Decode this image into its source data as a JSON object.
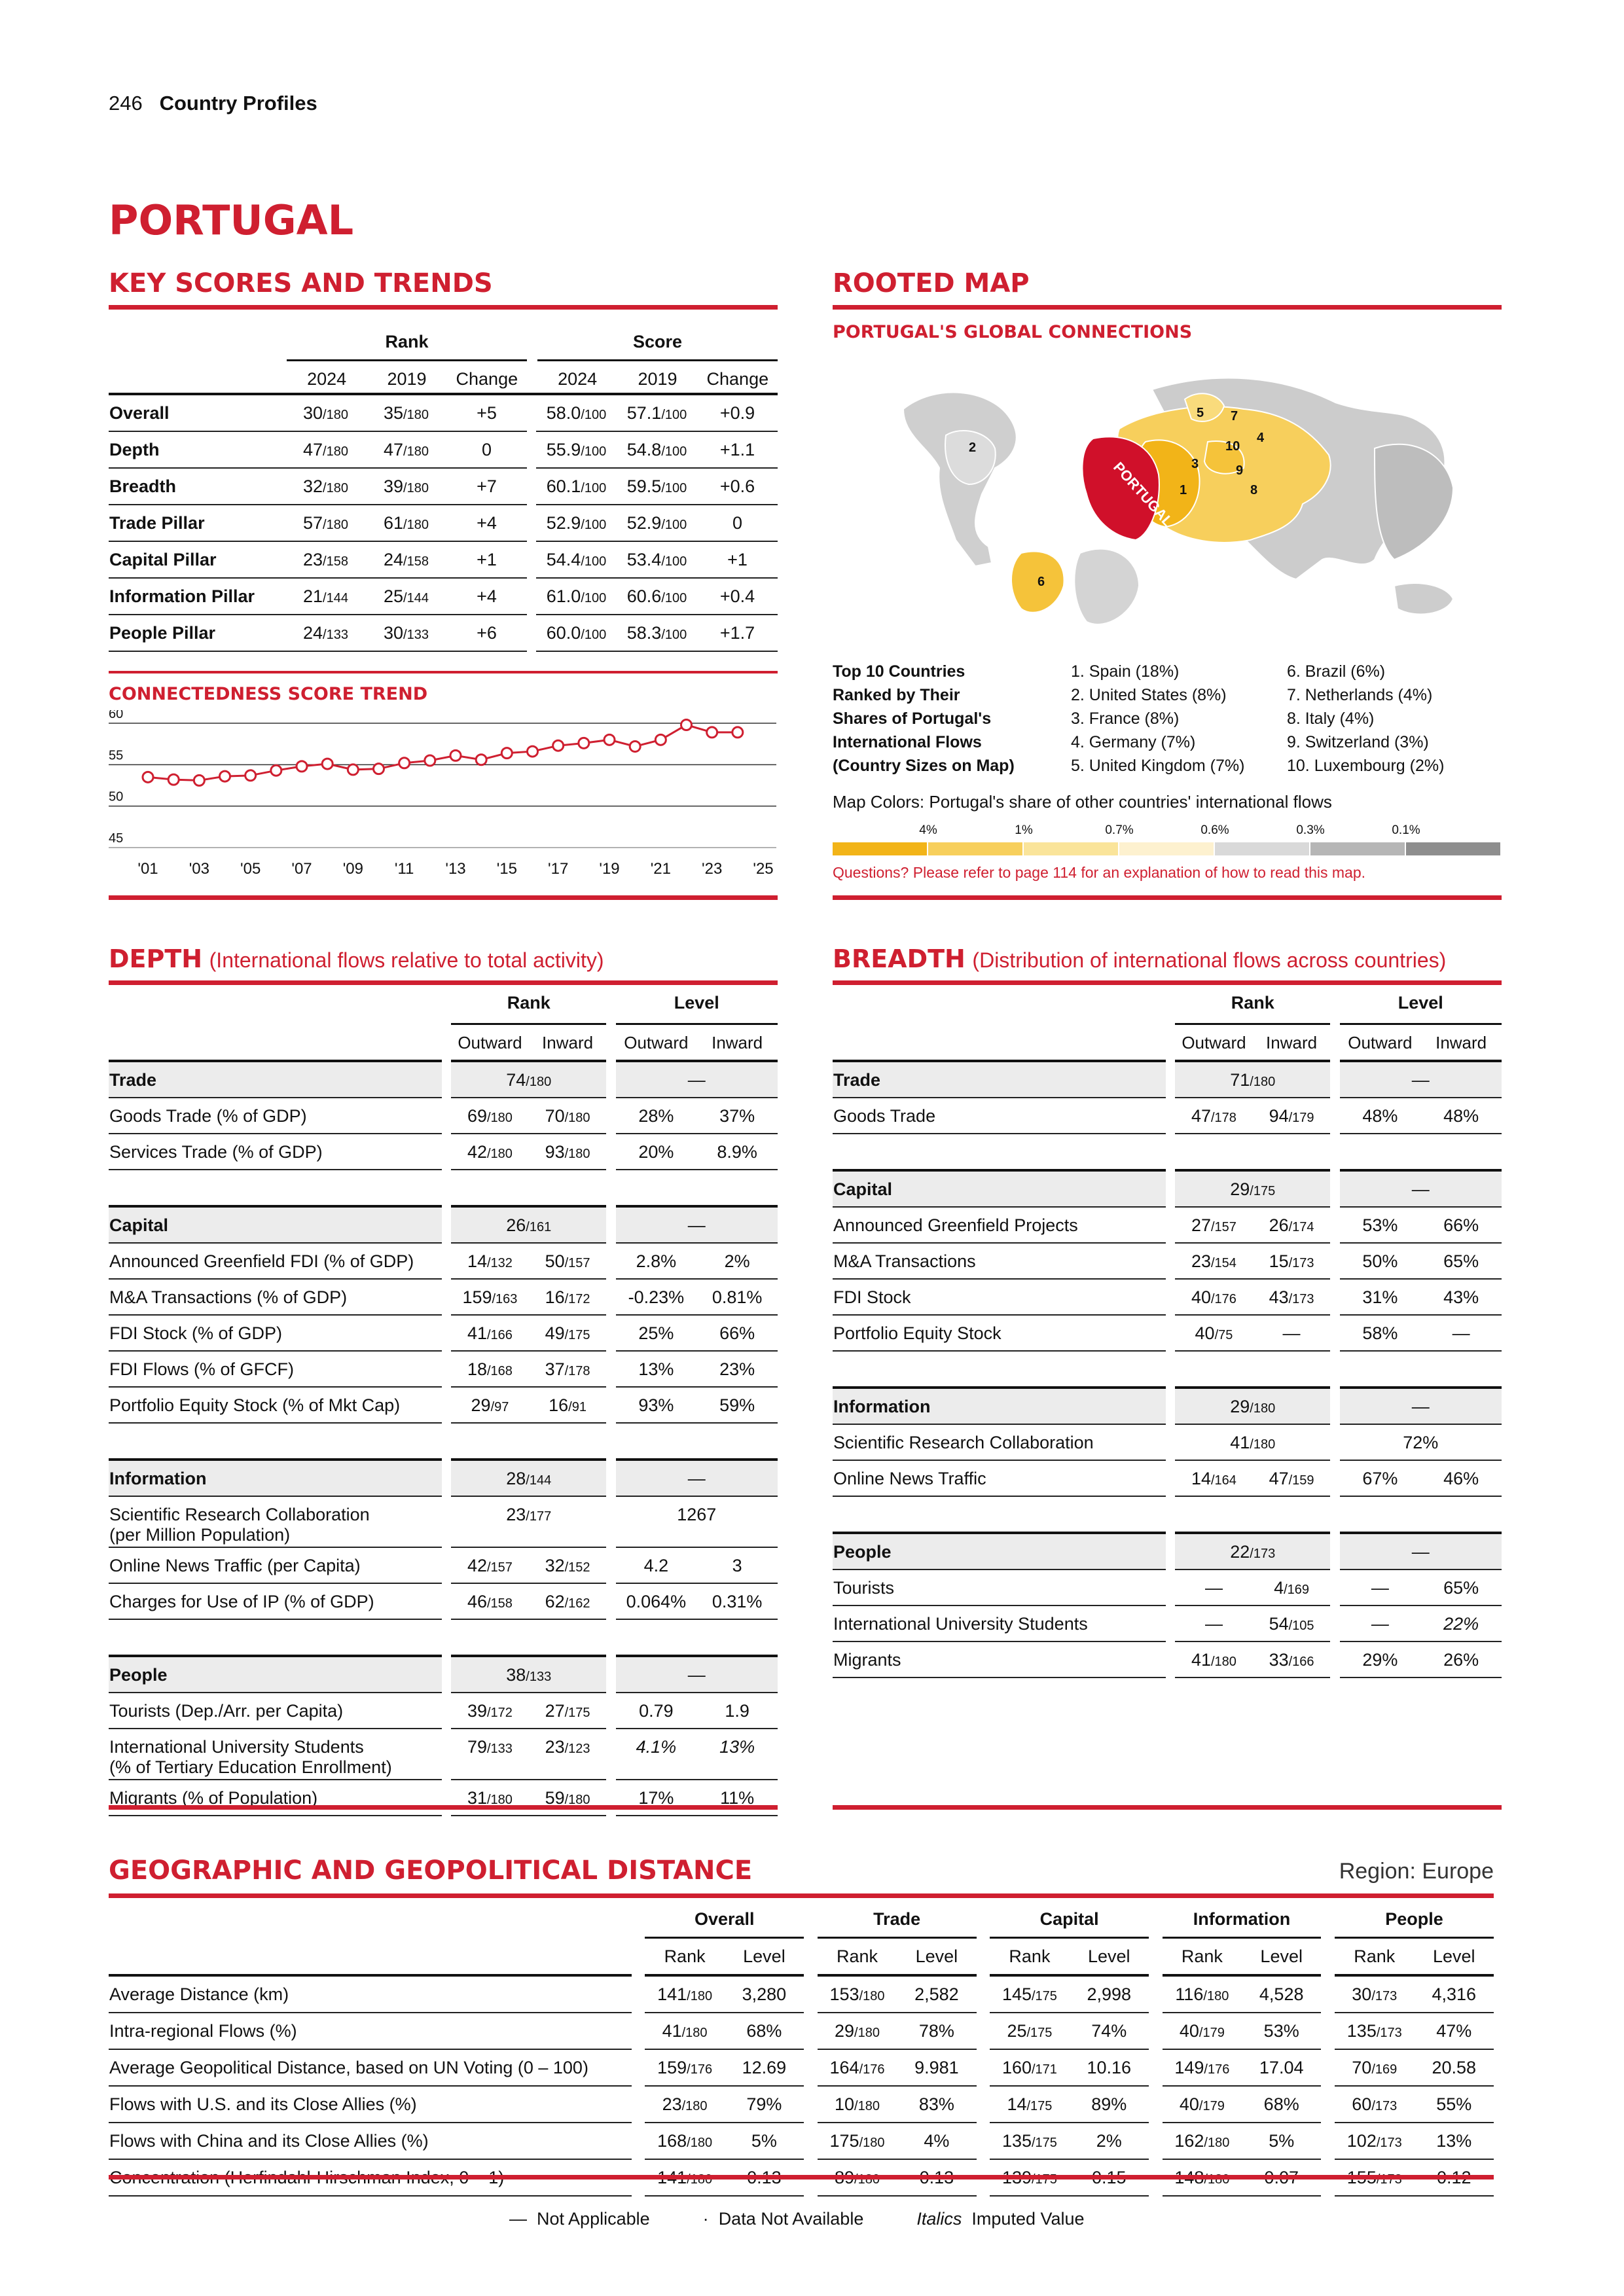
{
  "header": {
    "page_number": "246",
    "section": "Country Profiles"
  },
  "country": "PORTUGAL",
  "key_scores": {
    "title": "KEY SCORES AND TRENDS",
    "rank_label": "Rank",
    "score_label": "Score",
    "cols": [
      "2024",
      "2019",
      "Change",
      "2024",
      "2019",
      "Change"
    ],
    "rows": [
      {
        "label": "Overall",
        "r24": "30",
        "r24d": "/180",
        "r19": "35",
        "r19d": "/180",
        "rc": "+5",
        "s24": "58.0",
        "s24d": "/100",
        "s19": "57.1",
        "s19d": "/100",
        "sc": "+0.9"
      },
      {
        "label": "Depth",
        "r24": "47",
        "r24d": "/180",
        "r19": "47",
        "r19d": "/180",
        "rc": "0",
        "s24": "55.9",
        "s24d": "/100",
        "s19": "54.8",
        "s19d": "/100",
        "sc": "+1.1"
      },
      {
        "label": "Breadth",
        "r24": "32",
        "r24d": "/180",
        "r19": "39",
        "r19d": "/180",
        "rc": "+7",
        "s24": "60.1",
        "s24d": "/100",
        "s19": "59.5",
        "s19d": "/100",
        "sc": "+0.6"
      },
      {
        "label": "Trade Pillar",
        "r24": "57",
        "r24d": "/180",
        "r19": "61",
        "r19d": "/180",
        "rc": "+4",
        "s24": "52.9",
        "s24d": "/100",
        "s19": "52.9",
        "s19d": "/100",
        "sc": "0"
      },
      {
        "label": "Capital Pillar",
        "r24": "23",
        "r24d": "/158",
        "r19": "24",
        "r19d": "/158",
        "rc": "+1",
        "s24": "54.4",
        "s24d": "/100",
        "s19": "53.4",
        "s19d": "/100",
        "sc": "+1"
      },
      {
        "label": "Information Pillar",
        "r24": "21",
        "r24d": "/144",
        "r19": "25",
        "r19d": "/144",
        "rc": "+4",
        "s24": "61.0",
        "s24d": "/100",
        "s19": "60.6",
        "s19d": "/100",
        "sc": "+0.4"
      },
      {
        "label": "People Pillar",
        "r24": "24",
        "r24d": "/133",
        "r19": "30",
        "r19d": "/133",
        "rc": "+6",
        "s24": "60.0",
        "s24d": "/100",
        "s19": "58.3",
        "s19d": "/100",
        "sc": "+1.7"
      }
    ]
  },
  "trend": {
    "title": "CONNECTEDNESS SCORE TREND"
  },
  "chart_data": {
    "type": "line",
    "title": "CONNECTEDNESS SCORE TREND",
    "x": [
      "2001",
      "2002",
      "2003",
      "2004",
      "2005",
      "2006",
      "2007",
      "2008",
      "2009",
      "2010",
      "2011",
      "2012",
      "2013",
      "2014",
      "2015",
      "2016",
      "2017",
      "2018",
      "2019",
      "2020",
      "2021",
      "2022",
      "2023",
      "2024"
    ],
    "tick_labels": [
      "'01",
      "'03",
      "'05",
      "'07",
      "'09",
      "'11",
      "'13",
      "'15",
      "'17",
      "'19",
      "'21",
      "'23",
      "'25"
    ],
    "series": [
      {
        "values": [
          53.5,
          53.2,
          53.1,
          53.6,
          53.7,
          54.3,
          54.8,
          55.1,
          54.4,
          54.5,
          55.2,
          55.5,
          56.1,
          55.6,
          56.4,
          56.6,
          57.3,
          57.6,
          58.0,
          57.2,
          58.0,
          59.8,
          58.9,
          58.9
        ]
      }
    ],
    "y_ticks": [
      "60",
      "55",
      "50",
      "45"
    ],
    "ylim": [
      45,
      60
    ],
    "xlim": [
      2001,
      2025
    ],
    "grid": true,
    "color": "#cf1f30"
  },
  "rooted_map": {
    "title": "ROOTED MAP",
    "subtitle": "PORTUGAL'S GLOBAL CONNECTIONS",
    "country_label": "PORTUGAL",
    "top10_heading": [
      "Top 10 Countries",
      "Ranked by Their",
      "Shares of Portugal's",
      "International Flows",
      "(Country Sizes on Map)"
    ],
    "top10_col1": [
      "1. Spain (18%)",
      "2. United States (8%)",
      "3. France (8%)",
      "4. Germany (7%)",
      "5. United Kingdom (7%)"
    ],
    "top10_col2": [
      "6. Brazil (6%)",
      "7. Netherlands (4%)",
      "8. Italy (4%)",
      "9. Switzerland (3%)",
      "10. Luxembourg (2%)"
    ],
    "colors_caption": "Map Colors: Portugal's share of other countries' international flows",
    "scale_labels": [
      "4%",
      "1%",
      "0.7%",
      "0.6%",
      "0.3%",
      "0.1%"
    ],
    "scale_colors": [
      "#f2b418",
      "#f7cf5c",
      "#fae49a",
      "#fdf1cf",
      "#d9d9d9",
      "#b6b6b6",
      "#8e8e8e"
    ],
    "note": "Questions? Please refer to page 114 for an explanation of how to read this map."
  },
  "depth": {
    "title": "DEPTH",
    "subtitle": "(International flows relative to total activity)",
    "rank_label": "Rank",
    "level_label": "Level",
    "outward": "Outward",
    "inward": "Inward",
    "groups": [
      {
        "name": "Trade",
        "rank": "74",
        "rank_d": "/180",
        "level": "—",
        "rows": [
          {
            "label": "Goods Trade (% of GDP)",
            "ro": "69",
            "rod": "/180",
            "ri": "70",
            "rid": "/180",
            "lo": "28%",
            "li": "37%"
          },
          {
            "label": "Services Trade (% of GDP)",
            "ro": "42",
            "rod": "/180",
            "ri": "93",
            "rid": "/180",
            "lo": "20%",
            "li": "8.9%"
          }
        ]
      },
      {
        "name": "Capital",
        "rank": "26",
        "rank_d": "/161",
        "level": "—",
        "rows": [
          {
            "label": "Announced Greenfield FDI (% of GDP)",
            "ro": "14",
            "rod": "/132",
            "ri": "50",
            "rid": "/157",
            "lo": "2.8%",
            "li": "2%"
          },
          {
            "label": "M&A Transactions (% of GDP)",
            "ro": "159",
            "rod": "/163",
            "ri": "16",
            "rid": "/172",
            "lo": "-0.23%",
            "li": "0.81%"
          },
          {
            "label": "FDI Stock (% of GDP)",
            "ro": "41",
            "rod": "/166",
            "ri": "49",
            "rid": "/175",
            "lo": "25%",
            "li": "66%"
          },
          {
            "label": "FDI Flows (% of GFCF)",
            "ro": "18",
            "rod": "/168",
            "ri": "37",
            "rid": "/178",
            "lo": "13%",
            "li": "23%"
          },
          {
            "label": "Portfolio Equity Stock (% of Mkt Cap)",
            "ro": "29",
            "rod": "/97",
            "ri": "16",
            "rid": "/91",
            "lo": "93%",
            "li": "59%"
          }
        ]
      },
      {
        "name": "Information",
        "rank": "28",
        "rank_d": "/144",
        "level": "—",
        "rows": [
          {
            "label": "Scientific Research Collaboration",
            "label2": "(per Million Population)",
            "merged_rank": "23",
            "merged_rank_d": "/177",
            "merged_level": "1267"
          },
          {
            "label": "Online News Traffic (per Capita)",
            "ro": "42",
            "rod": "/157",
            "ri": "32",
            "rid": "/152",
            "lo": "4.2",
            "li": "3"
          },
          {
            "label": "Charges for Use of IP (% of GDP)",
            "ro": "46",
            "rod": "/158",
            "ri": "62",
            "rid": "/162",
            "lo": "0.064%",
            "li": "0.31%"
          }
        ]
      },
      {
        "name": "People",
        "rank": "38",
        "rank_d": "/133",
        "level": "—",
        "rows": [
          {
            "label": "Tourists (Dep./Arr. per Capita)",
            "ro": "39",
            "rod": "/172",
            "ri": "27",
            "rid": "/175",
            "lo": "0.79",
            "li": "1.9"
          },
          {
            "label": "International University Students",
            "label2": "(% of Tertiary Education Enrollment)",
            "ro": "79",
            "rod": "/133",
            "ri": "23",
            "rid": "/123",
            "lo": "4.1%",
            "li": "13%",
            "italic": true
          },
          {
            "label": "Migrants (% of Population)",
            "ro": "31",
            "rod": "/180",
            "ri": "59",
            "rid": "/180",
            "lo": "17%",
            "li": "11%"
          }
        ]
      }
    ]
  },
  "breadth": {
    "title": "BREADTH",
    "subtitle": "(Distribution of international flows across countries)",
    "groups": [
      {
        "name": "Trade",
        "rank": "71",
        "rank_d": "/180",
        "level": "—",
        "rows": [
          {
            "label": "Goods Trade",
            "ro": "47",
            "rod": "/178",
            "ri": "94",
            "rid": "/179",
            "lo": "48%",
            "li": "48%"
          }
        ]
      },
      {
        "name": "Capital",
        "rank": "29",
        "rank_d": "/175",
        "level": "—",
        "rows": [
          {
            "label": "Announced Greenfield Projects",
            "ro": "27",
            "rod": "/157",
            "ri": "26",
            "rid": "/174",
            "lo": "53%",
            "li": "66%"
          },
          {
            "label": "M&A Transactions",
            "ro": "23",
            "rod": "/154",
            "ri": "15",
            "rid": "/173",
            "lo": "50%",
            "li": "65%"
          },
          {
            "label": "FDI Stock",
            "ro": "40",
            "rod": "/176",
            "ri": "43",
            "rid": "/173",
            "lo": "31%",
            "li": "43%"
          },
          {
            "label": "Portfolio Equity Stock",
            "ro": "40",
            "rod": "/75",
            "ri": "—",
            "rid": "",
            "lo": "58%",
            "li": "—"
          }
        ]
      },
      {
        "name": "Information",
        "rank": "29",
        "rank_d": "/180",
        "level": "—",
        "rows": [
          {
            "label": "Scientific Research Collaboration",
            "merged_rank": "41",
            "merged_rank_d": "/180",
            "merged_level": "72%"
          },
          {
            "label": "Online News Traffic",
            "ro": "14",
            "rod": "/164",
            "ri": "47",
            "rid": "/159",
            "lo": "67%",
            "li": "46%"
          }
        ]
      },
      {
        "name": "People",
        "rank": "22",
        "rank_d": "/173",
        "level": "—",
        "rows": [
          {
            "label": "Tourists",
            "ro": "—",
            "rod": "",
            "ri": "4",
            "rid": "/169",
            "lo": "—",
            "li": "65%"
          },
          {
            "label": "International University Students",
            "ro": "—",
            "rod": "",
            "ri": "54",
            "rid": "/105",
            "lo": "—",
            "li": "22%",
            "italic": true
          },
          {
            "label": "Migrants",
            "ro": "41",
            "rod": "/180",
            "ri": "33",
            "rid": "/166",
            "lo": "29%",
            "li": "26%"
          }
        ]
      }
    ]
  },
  "geo": {
    "title": "GEOGRAPHIC AND GEOPOLITICAL DISTANCE",
    "region": "Region: Europe",
    "groups": [
      "Overall",
      "Trade",
      "Capital",
      "Information",
      "People"
    ],
    "sub": [
      "Rank",
      "Level"
    ],
    "rows": [
      {
        "label": "Average Distance (km)",
        "cells": [
          [
            "141",
            "/180",
            "3,280"
          ],
          [
            "153",
            "/180",
            "2,582"
          ],
          [
            "145",
            "/175",
            "2,998"
          ],
          [
            "116",
            "/180",
            "4,528"
          ],
          [
            "30",
            "/173",
            "4,316"
          ]
        ]
      },
      {
        "label": "Intra-regional Flows (%)",
        "cells": [
          [
            "41",
            "/180",
            "68%"
          ],
          [
            "29",
            "/180",
            "78%"
          ],
          [
            "25",
            "/175",
            "74%"
          ],
          [
            "40",
            "/179",
            "53%"
          ],
          [
            "135",
            "/173",
            "47%"
          ]
        ]
      },
      {
        "label": "Average Geopolitical Distance, based on UN Voting (0 – 100)",
        "cells": [
          [
            "159",
            "/176",
            "12.69"
          ],
          [
            "164",
            "/176",
            "9.981"
          ],
          [
            "160",
            "/171",
            "10.16"
          ],
          [
            "149",
            "/176",
            "17.04"
          ],
          [
            "70",
            "/169",
            "20.58"
          ]
        ]
      },
      {
        "label": "Flows with U.S. and its Close Allies (%)",
        "cells": [
          [
            "23",
            "/180",
            "79%"
          ],
          [
            "10",
            "/180",
            "83%"
          ],
          [
            "14",
            "/175",
            "89%"
          ],
          [
            "40",
            "/179",
            "68%"
          ],
          [
            "60",
            "/173",
            "55%"
          ]
        ]
      },
      {
        "label": "Flows with China and its Close Allies (%)",
        "cells": [
          [
            "168",
            "/180",
            "5%"
          ],
          [
            "175",
            "/180",
            "4%"
          ],
          [
            "135",
            "/175",
            "2%"
          ],
          [
            "162",
            "/180",
            "5%"
          ],
          [
            "102",
            "/173",
            "13%"
          ]
        ]
      },
      {
        "label": "Concentration (Herfindahl-Hirschman Index, 0 – 1)",
        "cells": [
          [
            "141",
            "/180",
            "0.13"
          ],
          [
            "89",
            "/180",
            "0.13"
          ],
          [
            "139",
            "/175",
            "0.15"
          ],
          [
            "148",
            "/180",
            "0.07"
          ],
          [
            "155",
            "/173",
            "0.12"
          ]
        ]
      }
    ]
  },
  "footer": {
    "na_symbol": "—",
    "na_label": "Not Applicable",
    "dna_symbol": "·",
    "dna_label": "Data Not Available",
    "italics_word": "Italics",
    "italics_label": "Imputed Value"
  }
}
